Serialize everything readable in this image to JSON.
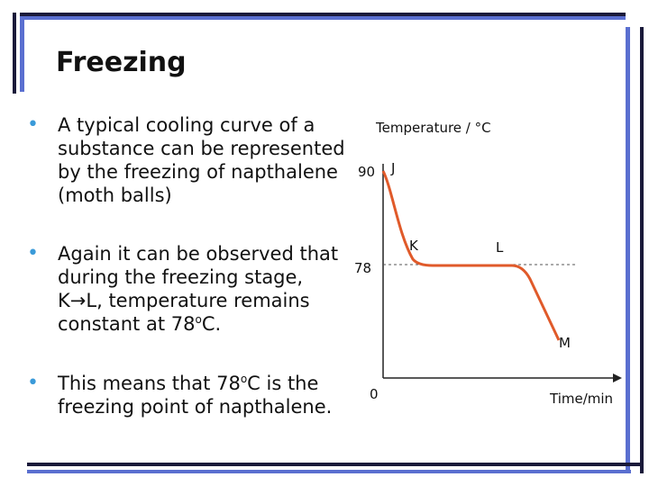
{
  "slide": {
    "title": "Freezing",
    "bullets": [
      {
        "text": "A typical cooling curve of a substance can be represented by the freezing of napthalene (moth balls)"
      },
      {
        "line1": "Again it can be observed that during the freezing stage,",
        "from": "K",
        "arrow": "→",
        "to": "L",
        "line2": ", temperature remains constant at 78",
        "deg": "o",
        "unit": "C."
      },
      {
        "pre": "This means that 78",
        "deg": "o",
        "post": "C is the freezing point of napthalene."
      }
    ],
    "bullet_glyph": "•"
  },
  "chart_data": {
    "type": "line",
    "ylabel": "Temperature / °C",
    "xlabel": "Time/min",
    "origin_label": "0",
    "y_ticks": [
      "90",
      "78"
    ],
    "points": [
      {
        "label": "J",
        "y": 90
      },
      {
        "label": "K",
        "y": 78
      },
      {
        "label": "L",
        "y": 78
      },
      {
        "label": "M",
        "y": null
      }
    ],
    "curve_color": "#e05a2a"
  },
  "colors": {
    "bar_dark": "#1a1a3a",
    "bar_blue": "#5a6fd0",
    "bullet": "#3a9ad9",
    "curve": "#e05a2a"
  }
}
